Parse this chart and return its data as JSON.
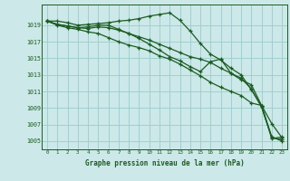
{
  "background_color": "#cce8e8",
  "grid_color": "#99cccc",
  "line_color": "#1a5c20",
  "xlabel": "Graphe pression niveau de la mer (hPa)",
  "xlim": [
    -0.5,
    23.5
  ],
  "ylim": [
    1004.0,
    1021.5
  ],
  "yticks": [
    1005,
    1007,
    1009,
    1011,
    1013,
    1015,
    1017,
    1019
  ],
  "xticks": [
    0,
    1,
    2,
    3,
    4,
    5,
    6,
    7,
    8,
    9,
    10,
    11,
    12,
    13,
    14,
    15,
    16,
    17,
    18,
    19,
    20,
    21,
    22,
    23
  ],
  "series": [
    [
      1019.5,
      1019.5,
      1019.3,
      1019.0,
      1019.1,
      1019.2,
      1019.3,
      1019.5,
      1019.6,
      1019.8,
      1020.1,
      1020.3,
      1020.5,
      1019.6,
      1018.3,
      1016.8,
      1015.5,
      1014.8,
      1013.8,
      1013.0,
      1011.2,
      1009.2,
      1005.3,
      1005.5
    ],
    [
      1019.5,
      1019.1,
      1018.9,
      1018.7,
      1018.6,
      1018.8,
      1018.7,
      1018.4,
      1018.0,
      1017.6,
      1017.2,
      1016.7,
      1016.2,
      1015.7,
      1015.2,
      1014.9,
      1014.5,
      1013.8,
      1013.2,
      1012.6,
      1011.3,
      1009.1,
      1005.4,
      1005.2
    ],
    [
      1019.5,
      1019.1,
      1018.9,
      1018.7,
      1018.8,
      1019.0,
      1019.0,
      1018.5,
      1018.0,
      1017.4,
      1016.7,
      1016.0,
      1015.2,
      1014.7,
      1014.0,
      1013.4,
      1014.6,
      1014.9,
      1013.2,
      1012.4,
      1011.8,
      1009.3,
      1007.1,
      1005.4
    ],
    [
      1019.5,
      1019.0,
      1018.7,
      1018.5,
      1018.2,
      1018.0,
      1017.5,
      1017.0,
      1016.6,
      1016.3,
      1015.9,
      1015.3,
      1014.9,
      1014.3,
      1013.6,
      1012.9,
      1012.1,
      1011.5,
      1011.0,
      1010.5,
      1009.6,
      1009.3,
      1005.5,
      1005.0
    ]
  ]
}
